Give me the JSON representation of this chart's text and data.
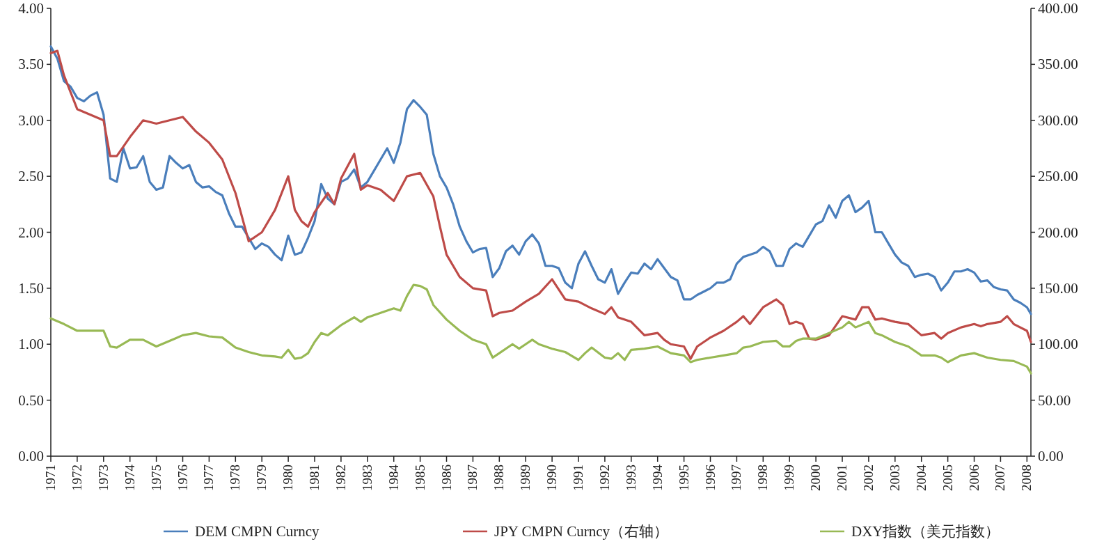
{
  "chart_data": {
    "type": "line",
    "xlim": [
      1971,
      2008.15
    ],
    "xticks": [
      1971,
      1972,
      1973,
      1974,
      1975,
      1976,
      1977,
      1978,
      1979,
      1980,
      1981,
      1982,
      1983,
      1984,
      1985,
      1986,
      1987,
      1988,
      1989,
      1990,
      1991,
      1992,
      1993,
      1994,
      1995,
      1996,
      1997,
      1998,
      1999,
      2000,
      2001,
      2002,
      2003,
      2004,
      2005,
      2006,
      2007,
      2008
    ],
    "ylim": [
      0,
      4
    ],
    "yticks": [
      {
        "value": 0,
        "label": "0.00"
      },
      {
        "value": 0.5,
        "label": "0.50"
      },
      {
        "value": 1,
        "label": "1.00"
      },
      {
        "value": 1.5,
        "label": "1.50"
      },
      {
        "value": 2,
        "label": "2.00"
      },
      {
        "value": 2.5,
        "label": "2.50"
      },
      {
        "value": 3,
        "label": "3.00"
      },
      {
        "value": 3.5,
        "label": "3.50"
      },
      {
        "value": 4,
        "label": "4.00"
      }
    ],
    "y2lim": [
      0,
      400
    ],
    "y2ticks": [
      {
        "value": 0,
        "label": "0.00"
      },
      {
        "value": 50,
        "label": "50.00"
      },
      {
        "value": 100,
        "label": "100.00"
      },
      {
        "value": 150,
        "label": "150.00"
      },
      {
        "value": 200,
        "label": "200.00"
      },
      {
        "value": 250,
        "label": "250.00"
      },
      {
        "value": 300,
        "label": "300.00"
      },
      {
        "value": 350,
        "label": "350.00"
      },
      {
        "value": 400,
        "label": "400.00"
      }
    ],
    "grid": false,
    "legend": "bottom",
    "series": [
      {
        "name": "DEM CMPN Curncy",
        "color": "#4a7ebb",
        "x": [
          1971.0,
          1971.25,
          1971.5,
          1971.75,
          1972.0,
          1972.25,
          1972.5,
          1972.75,
          1973.0,
          1973.25,
          1973.5,
          1973.75,
          1974.0,
          1974.25,
          1974.5,
          1974.75,
          1975.0,
          1975.25,
          1975.5,
          1975.75,
          1976.0,
          1976.25,
          1976.5,
          1976.75,
          1977.0,
          1977.25,
          1977.5,
          1977.75,
          1978.0,
          1978.25,
          1978.5,
          1978.75,
          1979.0,
          1979.25,
          1979.5,
          1979.75,
          1980.0,
          1980.25,
          1980.5,
          1980.75,
          1981.0,
          1981.25,
          1981.5,
          1981.75,
          1982.0,
          1982.25,
          1982.5,
          1982.75,
          1983.0,
          1983.25,
          1983.5,
          1983.75,
          1984.0,
          1984.25,
          1984.5,
          1984.75,
          1985.0,
          1985.25,
          1985.5,
          1985.75,
          1986.0,
          1986.25,
          1986.5,
          1986.75,
          1987.0,
          1987.25,
          1987.5,
          1987.75,
          1988.0,
          1988.25,
          1988.5,
          1988.75,
          1989.0,
          1989.25,
          1989.5,
          1989.75,
          1990.0,
          1990.25,
          1990.5,
          1990.75,
          1991.0,
          1991.25,
          1991.5,
          1991.75,
          1992.0,
          1992.25,
          1992.5,
          1992.75,
          1993.0,
          1993.25,
          1993.5,
          1993.75,
          1994.0,
          1994.25,
          1994.5,
          1994.75,
          1995.0,
          1995.25,
          1995.5,
          1995.75,
          1996.0,
          1996.25,
          1996.5,
          1996.75,
          1997.0,
          1997.25,
          1997.5,
          1997.75,
          1998.0,
          1998.25,
          1998.5,
          1998.75,
          1999.0,
          1999.25,
          1999.5,
          1999.75,
          2000.0,
          2000.25,
          2000.5,
          2000.75,
          2001.0,
          2001.25,
          2001.5,
          2001.75,
          2002.0,
          2002.25,
          2002.5,
          2002.75,
          2003.0,
          2003.25,
          2003.5,
          2003.75,
          2004.0,
          2004.25,
          2004.5,
          2004.75,
          2005.0,
          2005.25,
          2005.5,
          2005.75,
          2006.0,
          2006.25,
          2006.5,
          2006.75,
          2007.0,
          2007.25,
          2007.5,
          2007.75,
          2008.0,
          2008.15
        ],
        "values": [
          3.66,
          3.55,
          3.35,
          3.3,
          3.2,
          3.17,
          3.22,
          3.25,
          3.05,
          2.48,
          2.45,
          2.75,
          2.57,
          2.58,
          2.68,
          2.45,
          2.38,
          2.4,
          2.68,
          2.62,
          2.57,
          2.6,
          2.45,
          2.4,
          2.41,
          2.36,
          2.33,
          2.17,
          2.05,
          2.05,
          1.95,
          1.85,
          1.9,
          1.87,
          1.8,
          1.75,
          1.97,
          1.8,
          1.82,
          1.95,
          2.1,
          2.43,
          2.3,
          2.25,
          2.45,
          2.48,
          2.56,
          2.4,
          2.45,
          2.55,
          2.65,
          2.75,
          2.62,
          2.8,
          3.1,
          3.18,
          3.12,
          3.05,
          2.7,
          2.5,
          2.4,
          2.25,
          2.05,
          1.92,
          1.82,
          1.85,
          1.86,
          1.6,
          1.68,
          1.83,
          1.88,
          1.8,
          1.92,
          1.98,
          1.9,
          1.7,
          1.7,
          1.68,
          1.55,
          1.5,
          1.72,
          1.83,
          1.7,
          1.58,
          1.55,
          1.67,
          1.45,
          1.55,
          1.64,
          1.63,
          1.72,
          1.67,
          1.76,
          1.68,
          1.6,
          1.57,
          1.4,
          1.4,
          1.44,
          1.47,
          1.5,
          1.55,
          1.55,
          1.58,
          1.72,
          1.78,
          1.8,
          1.82,
          1.87,
          1.83,
          1.7,
          1.7,
          1.85,
          1.9,
          1.87,
          1.97,
          2.07,
          2.1,
          2.24,
          2.13,
          2.28,
          2.33,
          2.18,
          2.22,
          2.28,
          2.0,
          2.0,
          1.9,
          1.8,
          1.73,
          1.7,
          1.6,
          1.62,
          1.63,
          1.6,
          1.48,
          1.55,
          1.65,
          1.65,
          1.67,
          1.64,
          1.56,
          1.57,
          1.51,
          1.49,
          1.48,
          1.4,
          1.37,
          1.33,
          1.27
        ]
      },
      {
        "name": "JPY CMPN Curncy（右轴）",
        "color": "#be4b48",
        "axis": "y2",
        "x": [
          1971.0,
          1971.25,
          1971.5,
          1972.0,
          1972.5,
          1973.0,
          1973.25,
          1973.5,
          1974.0,
          1974.5,
          1975.0,
          1975.5,
          1976.0,
          1976.5,
          1977.0,
          1977.5,
          1978.0,
          1978.5,
          1979.0,
          1979.5,
          1980.0,
          1980.25,
          1980.5,
          1980.75,
          1981.0,
          1981.5,
          1981.75,
          1982.0,
          1982.5,
          1982.75,
          1983.0,
          1983.5,
          1984.0,
          1984.5,
          1985.0,
          1985.5,
          1985.75,
          1986.0,
          1986.5,
          1987.0,
          1987.5,
          1987.75,
          1988.0,
          1988.5,
          1989.0,
          1989.5,
          1990.0,
          1990.5,
          1991.0,
          1991.5,
          1992.0,
          1992.25,
          1992.5,
          1993.0,
          1993.5,
          1994.0,
          1994.25,
          1994.5,
          1995.0,
          1995.25,
          1995.5,
          1996.0,
          1996.5,
          1997.0,
          1997.25,
          1997.5,
          1998.0,
          1998.5,
          1998.75,
          1999.0,
          1999.25,
          1999.5,
          1999.75,
          2000.0,
          2000.5,
          2001.0,
          2001.5,
          2001.75,
          2002.0,
          2002.25,
          2002.5,
          2003.0,
          2003.5,
          2004.0,
          2004.5,
          2004.75,
          2005.0,
          2005.5,
          2006.0,
          2006.25,
          2006.5,
          2007.0,
          2007.25,
          2007.5,
          2008.0,
          2008.15
        ],
        "values": [
          360,
          362,
          340,
          310,
          305,
          300,
          268,
          268,
          285,
          300,
          297,
          300,
          303,
          290,
          280,
          265,
          235,
          192,
          200,
          220,
          250,
          220,
          210,
          205,
          218,
          235,
          225,
          248,
          270,
          238,
          242,
          238,
          228,
          250,
          253,
          232,
          205,
          180,
          160,
          150,
          148,
          125,
          128,
          130,
          138,
          145,
          158,
          140,
          138,
          132,
          127,
          133,
          124,
          120,
          108,
          110,
          104,
          100,
          98,
          87,
          98,
          106,
          112,
          120,
          125,
          118,
          133,
          140,
          135,
          118,
          120,
          118,
          105,
          104,
          108,
          125,
          122,
          133,
          133,
          122,
          123,
          120,
          118,
          108,
          110,
          105,
          110,
          115,
          118,
          116,
          118,
          120,
          125,
          118,
          112,
          102
        ]
      },
      {
        "name": "DXY指数（美元指数）",
        "color": "#98b954",
        "axis": "y2",
        "x": [
          1971.0,
          1971.5,
          1972.0,
          1972.5,
          1973.0,
          1973.25,
          1973.5,
          1974.0,
          1974.5,
          1975.0,
          1975.5,
          1976.0,
          1976.5,
          1977.0,
          1977.5,
          1978.0,
          1978.5,
          1979.0,
          1979.5,
          1979.75,
          1980.0,
          1980.25,
          1980.5,
          1980.75,
          1981.0,
          1981.25,
          1981.5,
          1982.0,
          1982.5,
          1982.75,
          1983.0,
          1983.5,
          1984.0,
          1984.25,
          1984.5,
          1984.75,
          1985.0,
          1985.25,
          1985.5,
          1986.0,
          1986.5,
          1987.0,
          1987.5,
          1987.75,
          1988.0,
          1988.5,
          1988.75,
          1989.0,
          1989.25,
          1989.5,
          1990.0,
          1990.5,
          1991.0,
          1991.25,
          1991.5,
          1992.0,
          1992.25,
          1992.5,
          1992.75,
          1993.0,
          1993.5,
          1994.0,
          1994.5,
          1995.0,
          1995.25,
          1995.5,
          1996.0,
          1996.5,
          1997.0,
          1997.25,
          1997.5,
          1998.0,
          1998.5,
          1998.75,
          1999.0,
          1999.25,
          1999.5,
          2000.0,
          2000.5,
          2001.0,
          2001.25,
          2001.5,
          2002.0,
          2002.25,
          2002.5,
          2003.0,
          2003.5,
          2004.0,
          2004.5,
          2004.75,
          2005.0,
          2005.5,
          2006.0,
          2006.5,
          2007.0,
          2007.5,
          2008.0,
          2008.15
        ],
        "values": [
          123,
          118,
          112,
          112,
          112,
          98,
          97,
          104,
          104,
          98,
          103,
          108,
          110,
          107,
          106,
          97,
          93,
          90,
          89,
          88,
          95,
          87,
          88,
          92,
          102,
          110,
          108,
          117,
          124,
          120,
          124,
          128,
          132,
          130,
          143,
          153,
          152,
          149,
          135,
          122,
          112,
          104,
          100,
          88,
          92,
          100,
          96,
          100,
          104,
          100,
          96,
          93,
          86,
          92,
          97,
          88,
          87,
          92,
          86,
          95,
          96,
          98,
          92,
          90,
          84,
          86,
          88,
          90,
          92,
          97,
          98,
          102,
          103,
          98,
          98,
          103,
          105,
          105,
          110,
          115,
          120,
          115,
          120,
          110,
          108,
          102,
          98,
          90,
          90,
          88,
          84,
          90,
          92,
          88,
          86,
          85,
          80,
          74
        ]
      }
    ]
  }
}
